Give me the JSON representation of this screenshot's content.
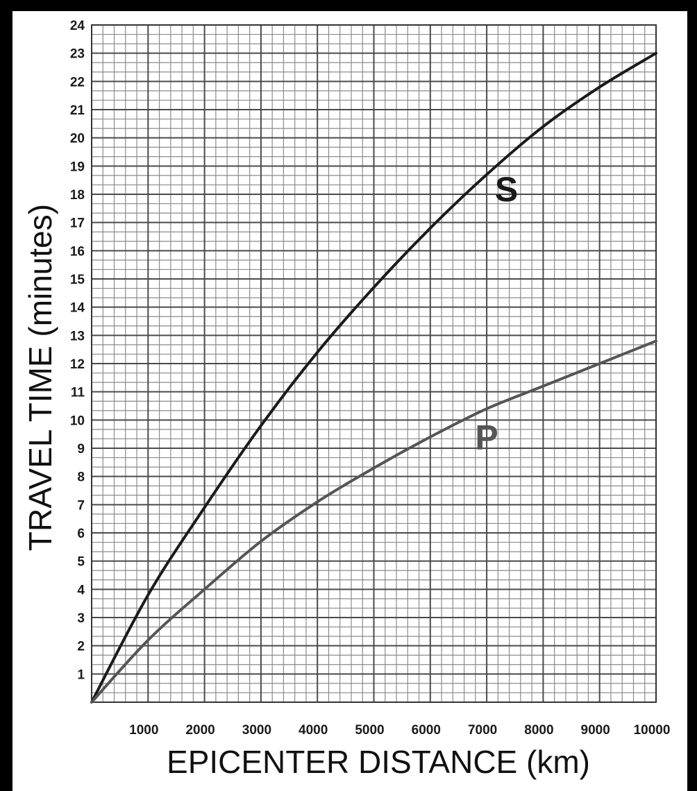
{
  "chart_data": {
    "type": "line",
    "xlabel": "EPICENTER DISTANCE (km)",
    "ylabel": "TRAVEL TIME (minutes)",
    "xlim": [
      0,
      10000
    ],
    "ylim": [
      0,
      24
    ],
    "x_ticks": [
      1000,
      2000,
      3000,
      4000,
      5000,
      6000,
      7000,
      8000,
      9000,
      10000
    ],
    "y_ticks": [
      1,
      2,
      3,
      4,
      5,
      6,
      7,
      8,
      9,
      10,
      11,
      12,
      13,
      14,
      15,
      16,
      17,
      18,
      19,
      20,
      21,
      22,
      23,
      24
    ],
    "grid": {
      "major_x_step": 1000,
      "minor_x_per_major": 5,
      "major_y_step": 1,
      "minor_y_per_major": 3
    },
    "series": [
      {
        "name": "S",
        "color": "#1a1a1a",
        "x": [
          0,
          1000,
          2000,
          3000,
          4000,
          5000,
          6000,
          7000,
          8000,
          9000,
          10000
        ],
        "y": [
          0,
          3.8,
          6.9,
          9.8,
          12.4,
          14.7,
          16.8,
          18.7,
          20.4,
          21.8,
          23.0
        ]
      },
      {
        "name": "P",
        "color": "#555555",
        "x": [
          0,
          1000,
          2000,
          3000,
          4000,
          5000,
          6000,
          7000,
          8000,
          9000,
          10000
        ],
        "y": [
          0,
          2.2,
          4.0,
          5.7,
          7.1,
          8.3,
          9.4,
          10.4,
          11.2,
          12.0,
          12.8
        ]
      }
    ],
    "series_labels": [
      {
        "text": "S",
        "x": 7350,
        "y": 18.2
      },
      {
        "text": "P",
        "x": 7000,
        "y": 9.4
      }
    ]
  }
}
